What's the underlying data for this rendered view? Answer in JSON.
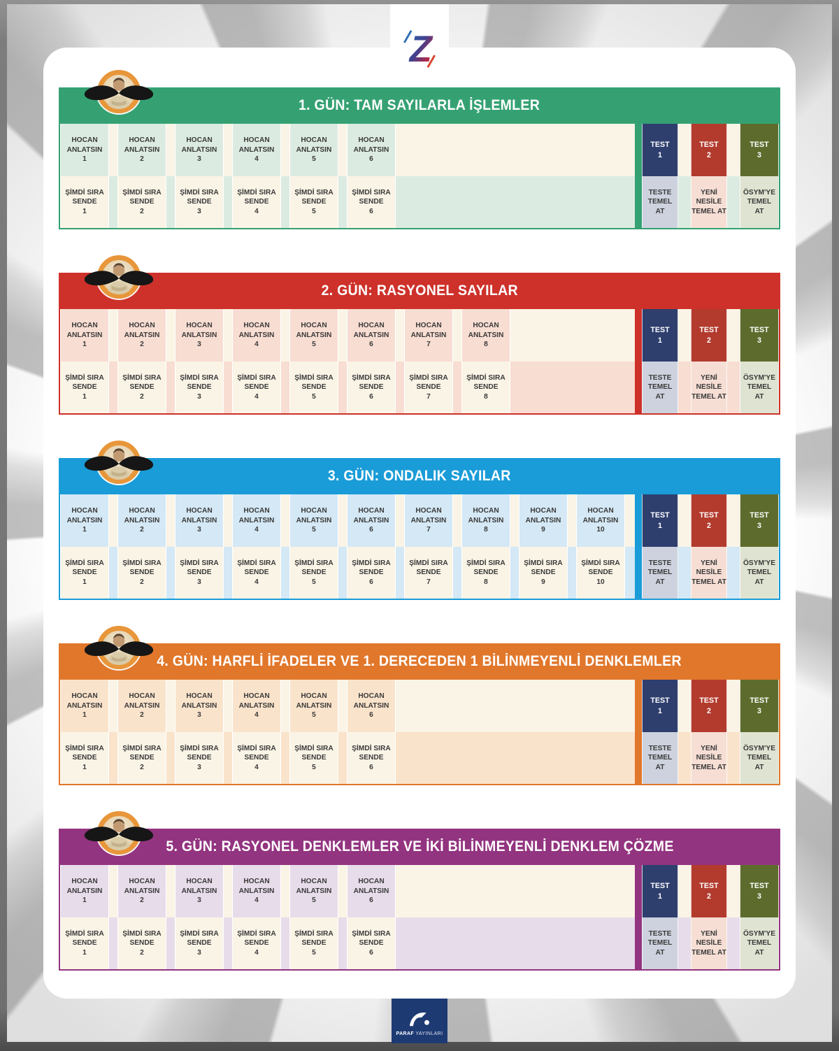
{
  "brand": {
    "logo_letter": "Z",
    "publisher_bold": "PARAF",
    "publisher_light": "YAYINLARI"
  },
  "colors": {
    "cream": "#faf4e6",
    "cell_text": "#3a3a3a",
    "publisher_navy": "#1d3a73",
    "badge_ring_orange": "#e8963a"
  },
  "cell_labels": {
    "lesson_line1": "HOCAN",
    "lesson_line2": "ANLATSIN",
    "practice_line1": "ŞİMDİ SIRA",
    "practice_line2": "SENDE"
  },
  "tests": [
    {
      "label": "TEST",
      "number": "1",
      "sub": "TESTE TEMEL AT",
      "sub_lines": [
        "TESTE",
        "TEMEL",
        "AT"
      ],
      "bg": "#2e3f6e",
      "sub_bg": "#cdd2de"
    },
    {
      "label": "TEST",
      "number": "2",
      "sub": "YENİ NESİLE TEMEL AT",
      "sub_lines": [
        "YENİ",
        "NESİLE",
        "TEMEL AT"
      ],
      "bg": "#b23b2e",
      "sub_bg": "#f6ded4"
    },
    {
      "label": "TEST",
      "number": "3",
      "sub": "ÖSYM'YE TEMEL AT",
      "sub_lines": [
        "ÖSYM'YE",
        "TEMEL",
        "AT"
      ],
      "bg": "#5d6c2c",
      "sub_bg": "#dfe3d1"
    }
  ],
  "sections": [
    {
      "title": "1. GÜN: TAM SAYILARLA İŞLEMLER",
      "color": "#35a173",
      "tint": "#dcebe1",
      "lesson_count": 6
    },
    {
      "title": "2. GÜN: RASYONEL SAYILAR",
      "color": "#cd312a",
      "tint": "#f8ddd2",
      "lesson_count": 8
    },
    {
      "title": "3. GÜN: ONDALIK SAYILAR",
      "color": "#1a9cd8",
      "tint": "#d4e8f5",
      "lesson_count": 10
    },
    {
      "title": "4. GÜN: HARFLİ İFADELER VE 1. DERECEDEN 1 BİLİNMEYENLİ DENKLEMLER",
      "color": "#e1772b",
      "tint": "#fae3cb",
      "lesson_count": 6
    },
    {
      "title": "5. GÜN: RASYONEL DENKLEMLER VE İKİ BİLİNMEYENLİ DENKLEM ÇÖZME",
      "color": "#933480",
      "tint": "#e7dcea",
      "lesson_count": 6
    }
  ]
}
